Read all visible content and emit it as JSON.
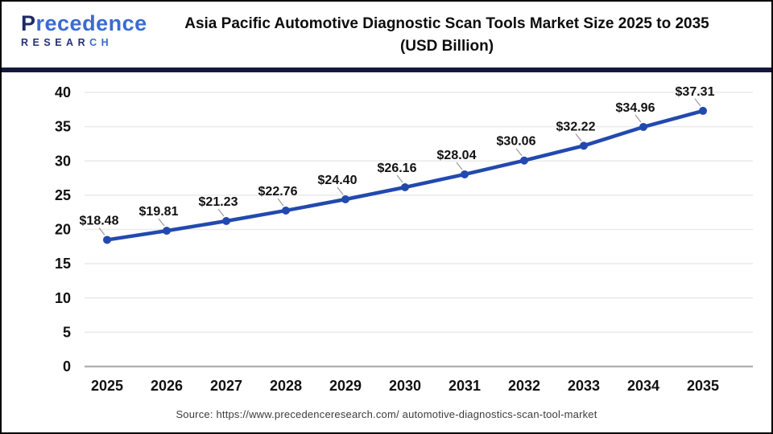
{
  "logo": {
    "name_first": "P",
    "name_rest": "recedence",
    "subtitle_first": "RESEAR",
    "subtitle_rest": "CH",
    "color_navy": "#1d2a67",
    "color_blue": "#3a6bd0"
  },
  "header": {
    "title_line1": "Asia Pacific Automotive Diagnostic Scan Tools Market Size 2025 to 2035",
    "title_line2": "(USD Billion)"
  },
  "chart_data": {
    "type": "line",
    "title": "Asia Pacific Automotive Diagnostic Scan Tools Market Size 2025 to 2035 (USD Billion)",
    "categories": [
      "2025",
      "2026",
      "2027",
      "2028",
      "2029",
      "2030",
      "2031",
      "2032",
      "2033",
      "2034",
      "2035"
    ],
    "values": [
      18.48,
      19.81,
      21.23,
      22.76,
      24.4,
      26.16,
      28.04,
      30.06,
      32.22,
      34.96,
      37.31
    ],
    "point_labels": [
      "$18.48",
      "$19.81",
      "$21.23",
      "$22.76",
      "$24.40",
      "$26.16",
      "$28.04",
      "$30.06",
      "$32.22",
      "$34.96",
      "$37.31"
    ],
    "xlabel": "",
    "ylabel": "",
    "ylim": [
      0,
      40
    ],
    "ytick_step": 5,
    "ytick_labels": [
      "0",
      "5",
      "10",
      "15",
      "20",
      "25",
      "30",
      "35",
      "40"
    ],
    "grid": true,
    "legend": "none",
    "line_color": "#2249ae",
    "marker_color": "#2249ae",
    "grid_color": "#eaeaea",
    "axis_color": "#b3b3b3",
    "tick_label_color": "#111111",
    "point_label_color": "#111111",
    "leader_line_color": "#9a9a9a"
  },
  "footer": {
    "source": "Source: https://www.precedenceresearch.com/ automotive-diagnostics-scan-tool-market"
  },
  "accent": {
    "divider_color": "#15183d",
    "frame_border_color": "#000000"
  }
}
